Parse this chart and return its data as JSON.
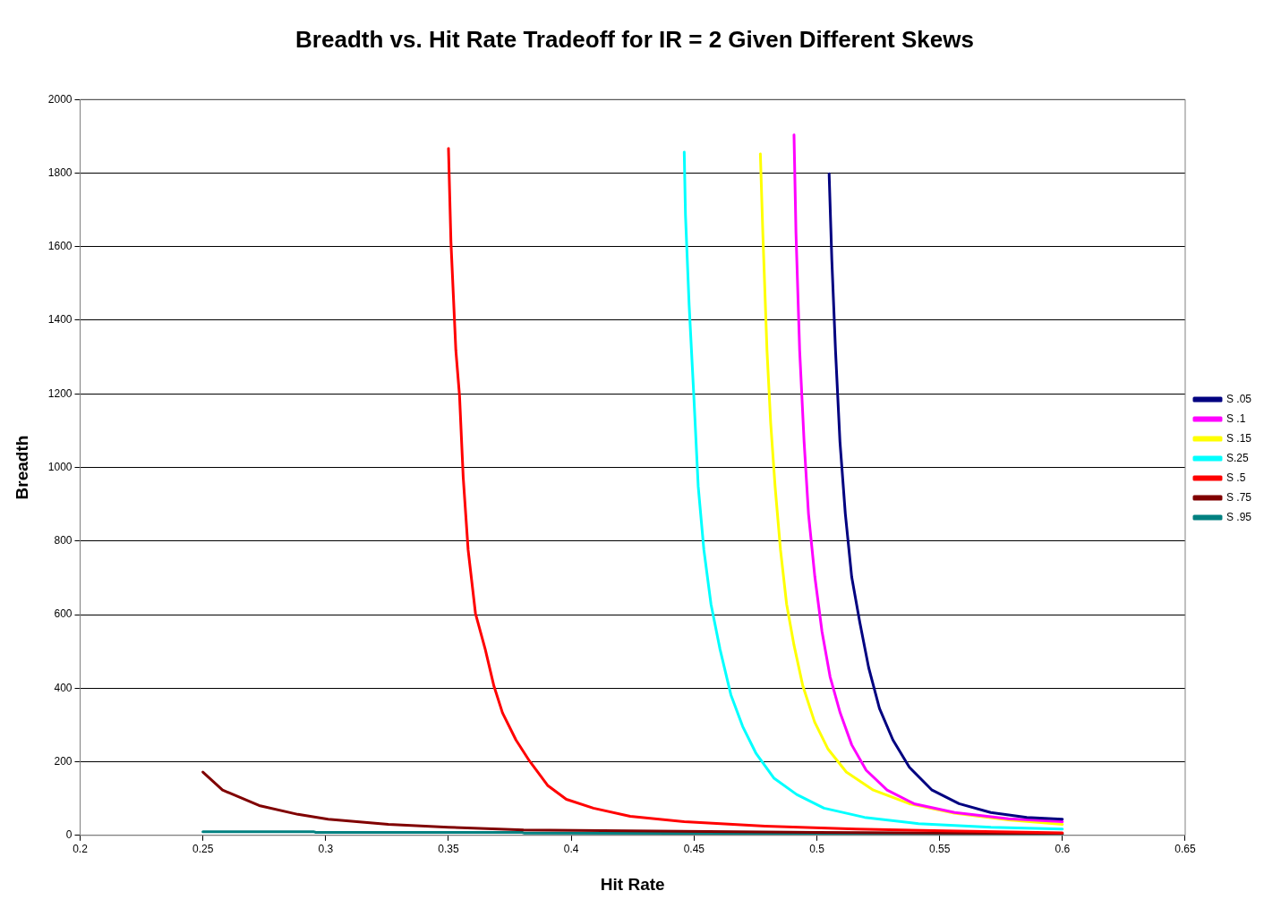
{
  "chart_data": {
    "type": "line",
    "title": "Breadth vs. Hit Rate Tradeoff for IR = 2 Given Different Skews",
    "xlabel": "Hit Rate",
    "ylabel": "Breadth",
    "xlim": [
      0.2,
      0.65
    ],
    "xticks": [
      0.2,
      0.25,
      0.3,
      0.35,
      0.4,
      0.45,
      0.5,
      0.55,
      0.6,
      0.65
    ],
    "ylim": [
      0,
      2000
    ],
    "yticks": [
      0,
      200,
      400,
      600,
      800,
      1000,
      1200,
      1400,
      1600,
      1800,
      2000
    ],
    "grid": "y",
    "legend": "right",
    "marker": "none",
    "line_style": "solid",
    "series": [
      {
        "name": "S .05",
        "color": "#000080",
        "x": [
          0.505,
          0.5061,
          0.5076,
          0.5094,
          0.5116,
          0.5142,
          0.5175,
          0.5211,
          0.5255,
          0.531,
          0.5377,
          0.5469,
          0.5579,
          0.5708,
          0.5855,
          0.6
        ],
        "values": [
          1798,
          1564,
          1318,
          1071,
          874,
          702,
          579,
          456,
          345,
          259,
          185,
          123,
          86,
          62,
          49,
          44
        ]
      },
      {
        "name": "S .1",
        "color": "#ff00ff",
        "x": [
          0.4907,
          0.4915,
          0.493,
          0.4948,
          0.4966,
          0.4992,
          0.5021,
          0.5054,
          0.5095,
          0.5142,
          0.5201,
          0.5286,
          0.5396,
          0.5561,
          0.578,
          0.6
        ],
        "values": [
          1904,
          1638,
          1318,
          1071,
          874,
          702,
          554,
          431,
          333,
          246,
          177,
          123,
          86,
          62,
          45,
          37
        ]
      },
      {
        "name": "S .15",
        "color": "#ffff00",
        "x": [
          0.477,
          0.478,
          0.4797,
          0.4812,
          0.483,
          0.4852,
          0.4877,
          0.4907,
          0.4943,
          0.4991,
          0.5046,
          0.512,
          0.523,
          0.5377,
          0.556,
          0.578,
          0.6
        ],
        "values": [
          1852,
          1638,
          1318,
          1121,
          948,
          776,
          628,
          517,
          406,
          308,
          234,
          172,
          123,
          86,
          60,
          42,
          30
        ]
      },
      {
        "name": "S.25",
        "color": "#00ffff",
        "x": [
          0.446,
          0.4465,
          0.448,
          0.4499,
          0.4517,
          0.454,
          0.4569,
          0.4606,
          0.465,
          0.4698,
          0.4753,
          0.4826,
          0.4918,
          0.5029,
          0.5194,
          0.5414,
          0.5709,
          0.6
        ],
        "values": [
          1857,
          1687,
          1441,
          1195,
          948,
          776,
          628,
          505,
          382,
          296,
          222,
          155,
          111,
          74,
          49,
          32,
          22,
          17
        ]
      },
      {
        "name": "S .5",
        "color": "#ff0000",
        "x": [
          0.35,
          0.351,
          0.353,
          0.3545,
          0.356,
          0.358,
          0.361,
          0.365,
          0.3685,
          0.372,
          0.3775,
          0.383,
          0.3905,
          0.398,
          0.409,
          0.424,
          0.446,
          0.479,
          0.516,
          0.5525,
          0.6
        ],
        "values": [
          1867,
          1613,
          1318,
          1195,
          973,
          776,
          603,
          505,
          406,
          333,
          259,
          202,
          135,
          98,
          74,
          52,
          37,
          25,
          17,
          12,
          7
        ]
      },
      {
        "name": "S .75",
        "color": "#800000",
        "x": [
          0.25,
          0.258,
          0.2729,
          0.2887,
          0.301,
          0.3255,
          0.35,
          0.3806,
          0.4237,
          0.5,
          0.6
        ],
        "values": [
          172,
          123,
          81,
          57,
          44,
          30,
          22,
          15,
          12,
          8,
          5
        ]
      },
      {
        "name": "S .95",
        "color": "#008080",
        "x": [
          0.25,
          0.295,
          0.296,
          0.38,
          0.381,
          0.6
        ],
        "values": [
          10,
          10,
          8,
          8,
          6,
          4
        ]
      }
    ]
  }
}
